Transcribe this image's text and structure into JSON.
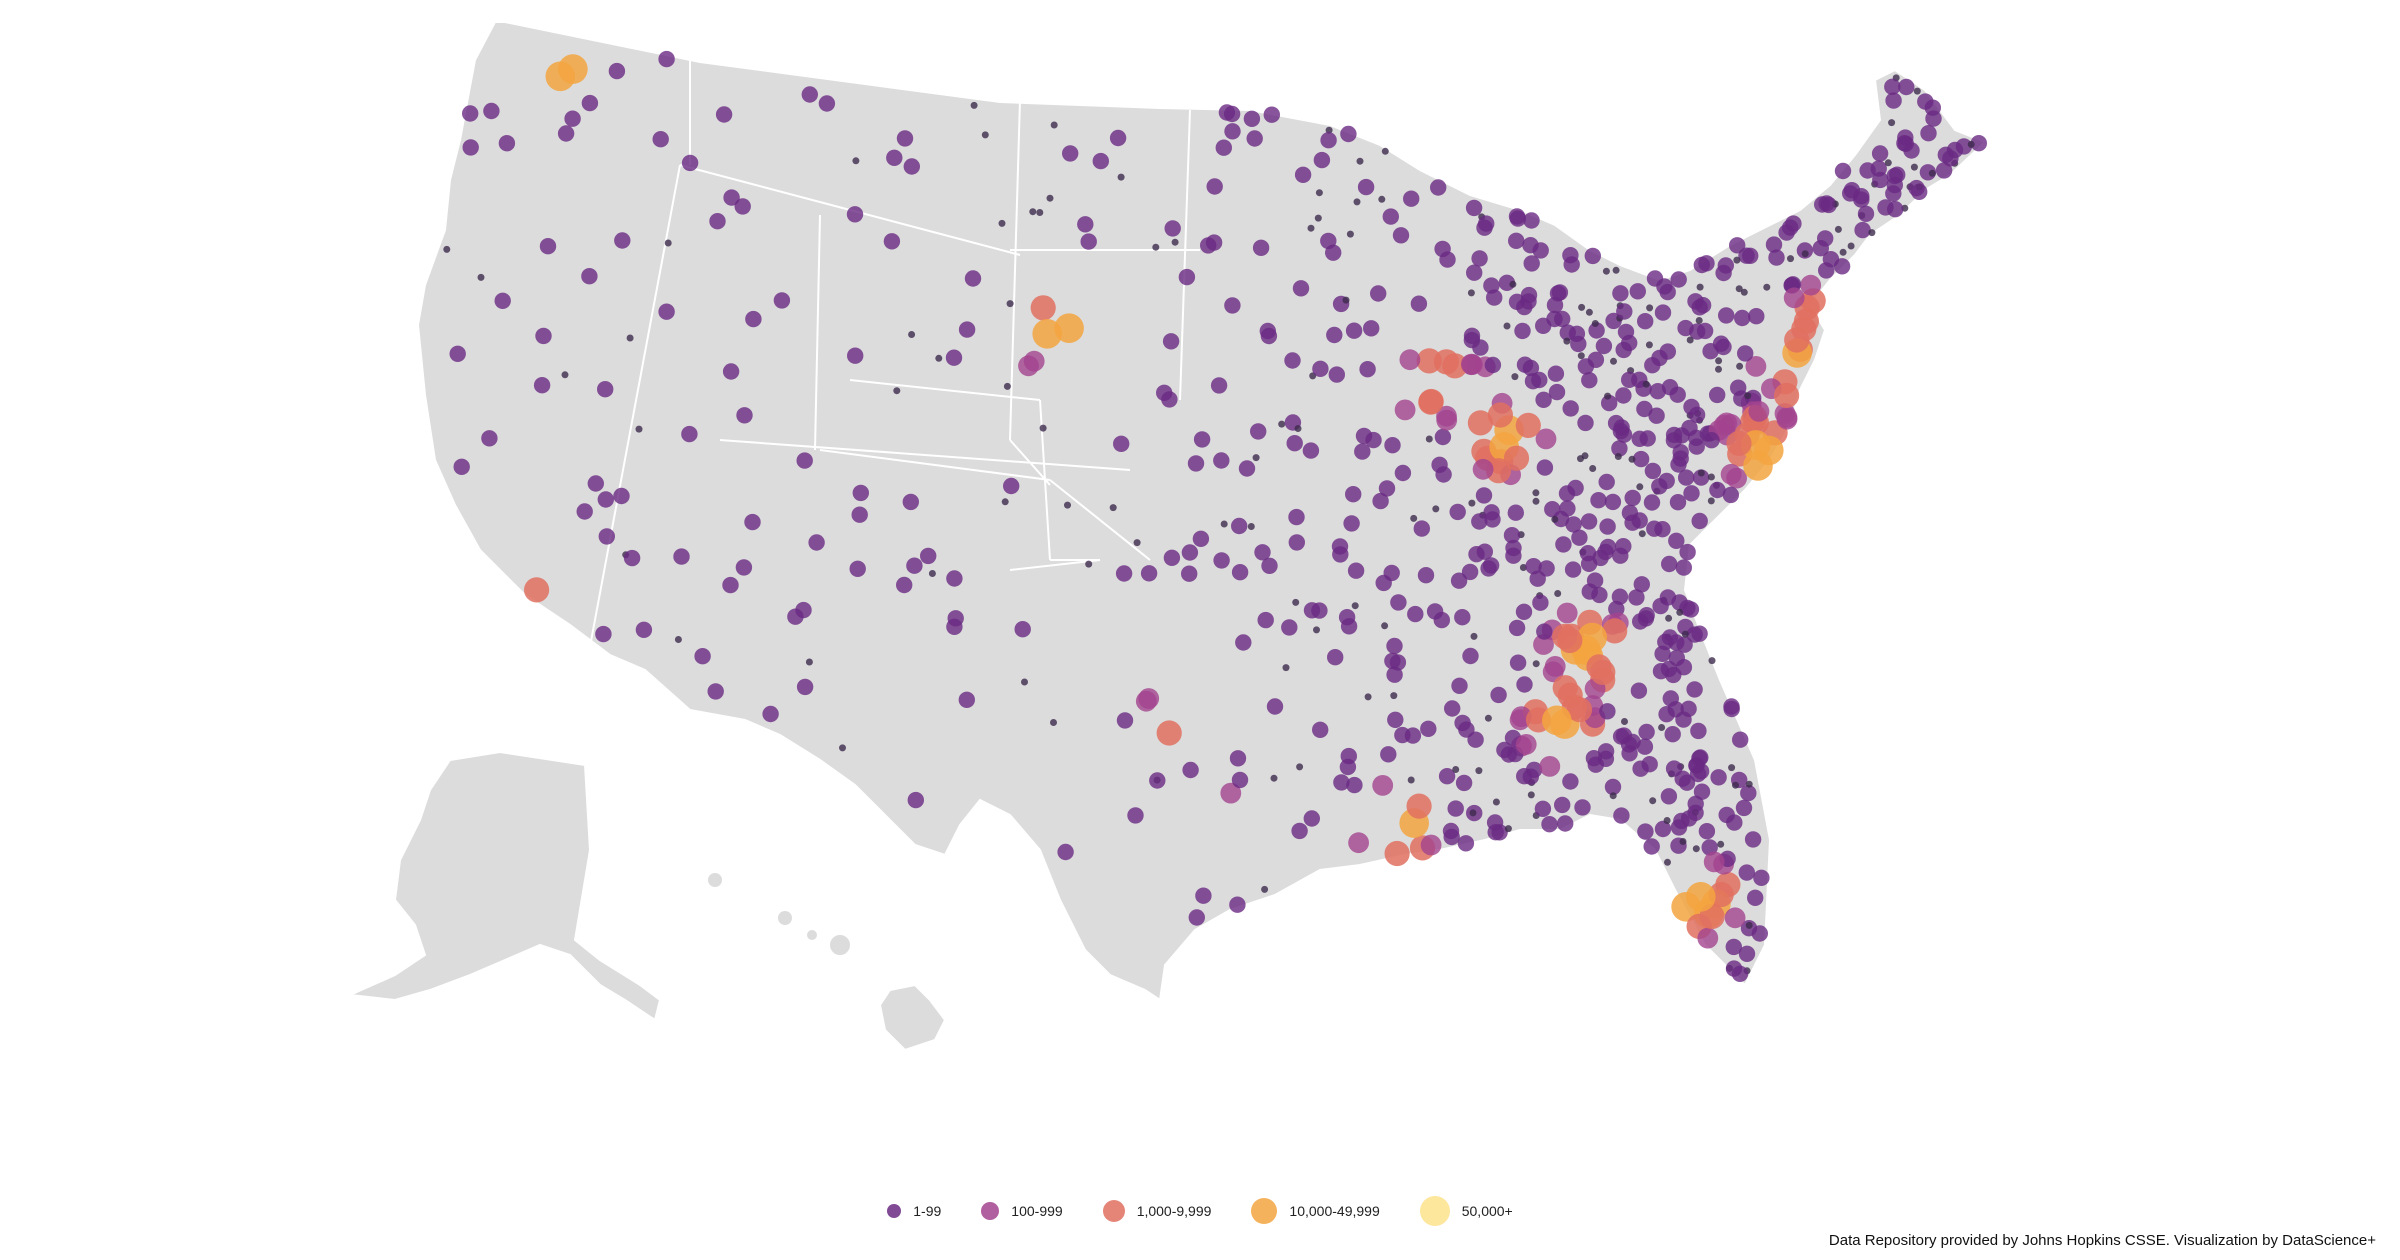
{
  "map": {
    "land_color": "#dcdcdc",
    "border_color": "#ffffff",
    "regions": [
      "contiguous-us",
      "alaska",
      "hawaii"
    ]
  },
  "legend": {
    "items": [
      {
        "label": "1-99",
        "color": "#6a2a83"
      },
      {
        "label": "100-999",
        "color": "#a2448e"
      },
      {
        "label": "1,000-9,999",
        "color": "#e07060"
      },
      {
        "label": "10,000-49,999",
        "color": "#f3a53f"
      },
      {
        "label": "50,000+",
        "color": "#fde38c"
      }
    ]
  },
  "credit": "Data Repository provided by Johns Hopkins CSSE. Visualization by DataScience+"
}
